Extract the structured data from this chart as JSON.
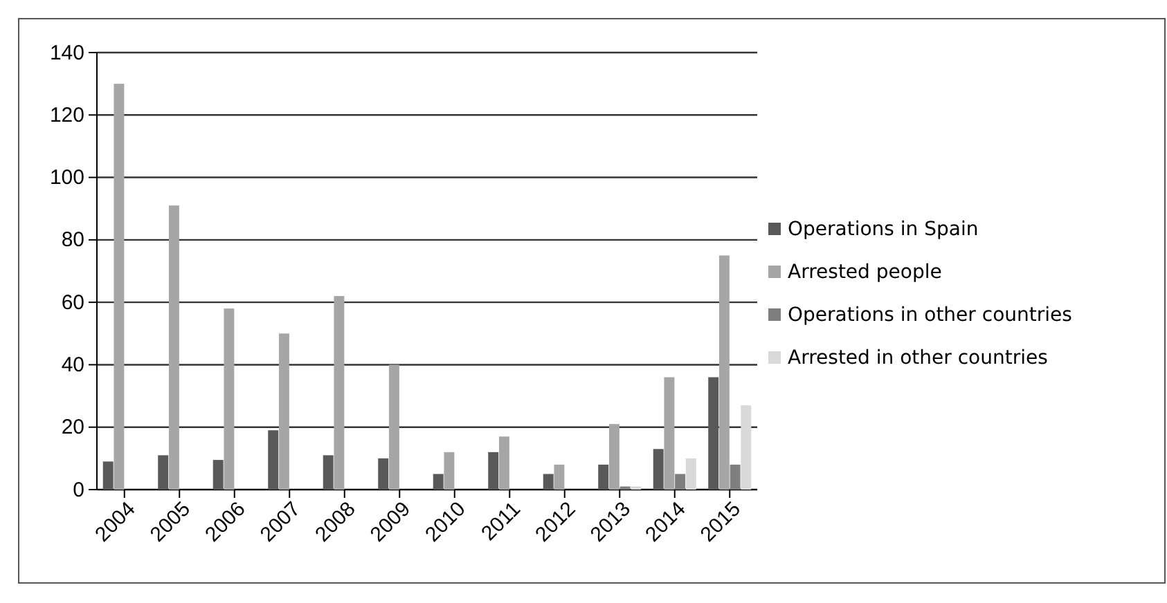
{
  "chart_data": {
    "type": "bar",
    "categories": [
      "2004",
      "2005",
      "2006",
      "2007",
      "2008",
      "2009",
      "2010",
      "2011",
      "2012",
      "2013",
      "2014",
      "2015"
    ],
    "series": [
      {
        "name": "Operations in Spain",
        "color": "#595959",
        "values": [
          9,
          11,
          9.5,
          19,
          11,
          10,
          5,
          12,
          5,
          8,
          13,
          36
        ]
      },
      {
        "name": "Arrested people",
        "color": "#a6a6a6",
        "values": [
          130,
          91,
          58,
          50,
          62,
          40,
          12,
          17,
          8,
          21,
          36,
          75
        ]
      },
      {
        "name": "Operations in other countries",
        "color": "#7f7f7f",
        "values": [
          0,
          0,
          0,
          0,
          0,
          0,
          0,
          0,
          0,
          1,
          5,
          8
        ]
      },
      {
        "name": "Arrested in other countries",
        "color": "#d9d9d9",
        "values": [
          0,
          0,
          0,
          0,
          0,
          0,
          0,
          0,
          0,
          1,
          10,
          27
        ]
      }
    ],
    "ylim": [
      0,
      140
    ],
    "yticks": [
      0,
      20,
      40,
      60,
      80,
      100,
      120,
      140
    ],
    "grid": "y",
    "legend": "right"
  }
}
